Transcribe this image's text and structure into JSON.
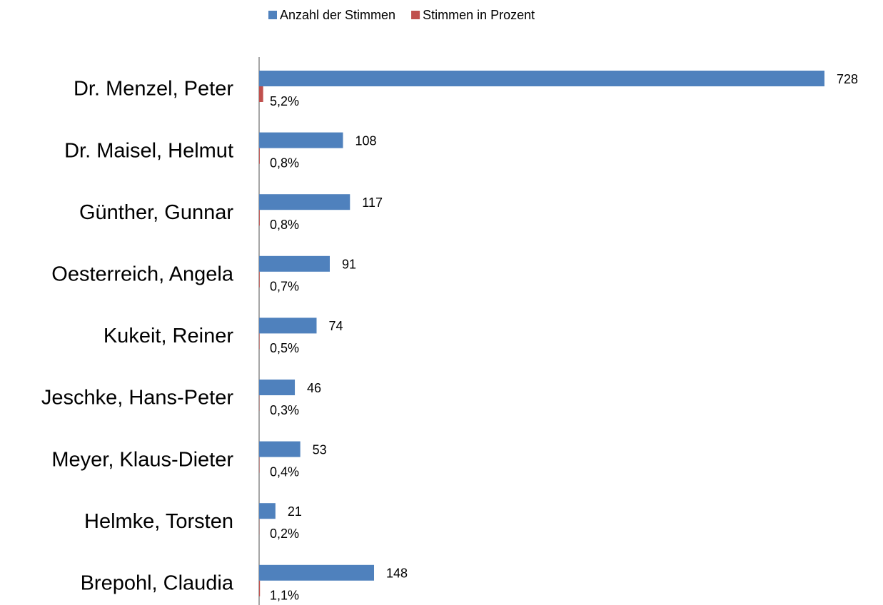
{
  "chart_data": {
    "type": "hbar",
    "categories": [
      "Dr. Menzel, Peter",
      "Dr. Maisel, Helmut",
      "Günther, Gunnar",
      "Oesterreich, Angela",
      "Kukeit, Reiner",
      "Jeschke, Hans-Peter",
      "Meyer, Klaus-Dieter",
      "Helmke, Torsten",
      "Brepohl, Claudia"
    ],
    "series": [
      {
        "name": "Anzahl der Stimmen",
        "color": "#4f81bd",
        "values": [
          728,
          108,
          117,
          91,
          74,
          46,
          53,
          21,
          148
        ]
      },
      {
        "name": "Stimmen in Prozent",
        "color": "#c0504d",
        "values": [
          5.2,
          0.8,
          0.8,
          0.7,
          0.5,
          0.3,
          0.4,
          0.2,
          1.1
        ],
        "value_labels": [
          "5,2%",
          "0,8%",
          "0,8%",
          "0,7%",
          "0,5%",
          "0,3%",
          "0,4%",
          "0,2%",
          "1,1%"
        ]
      }
    ],
    "legend": "top"
  }
}
